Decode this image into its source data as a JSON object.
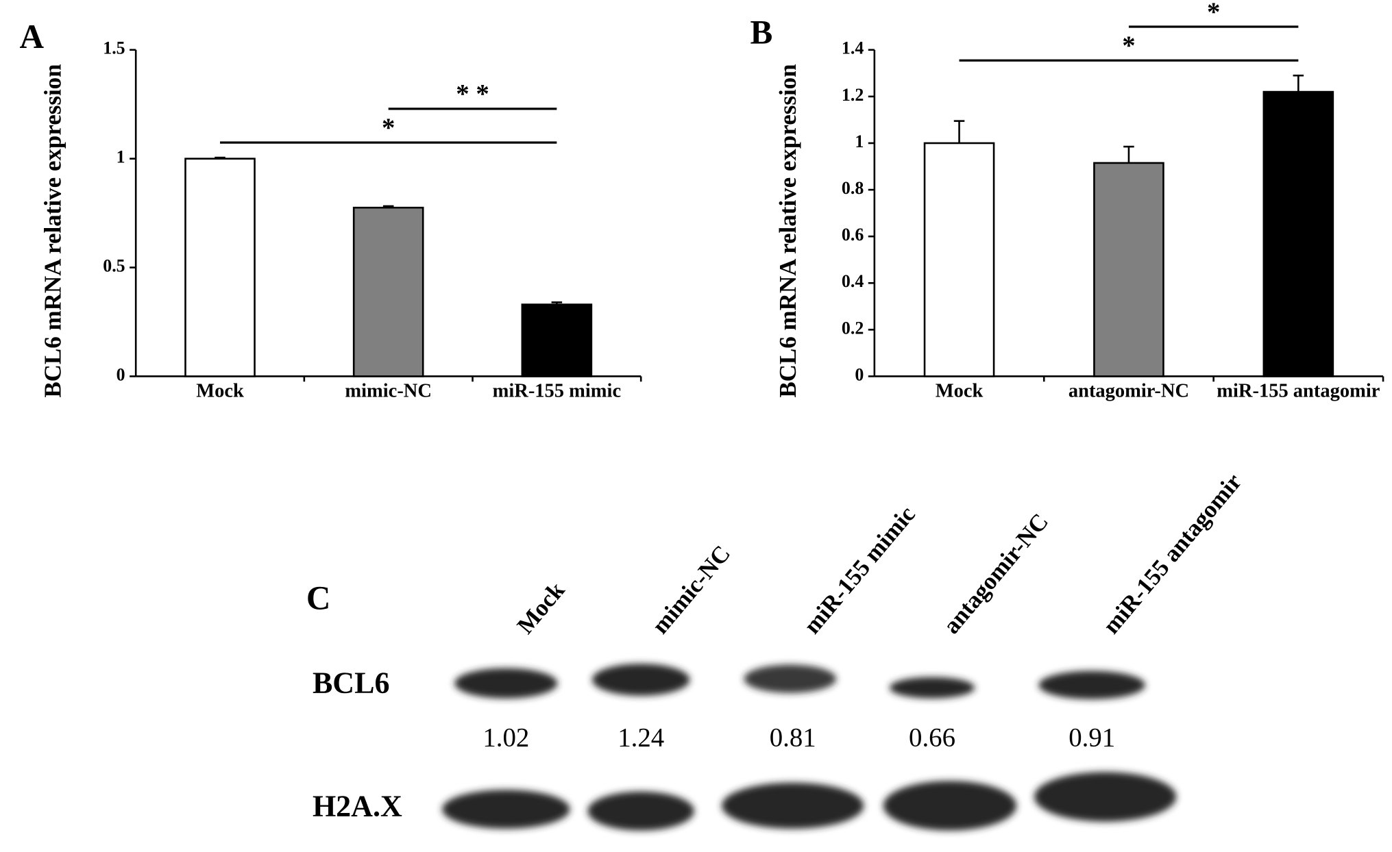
{
  "chart_data": [
    {
      "type": "bar",
      "panel": "A",
      "ylabel": "BCL6 mRNA relative expression",
      "categories": [
        "Mock",
        "mimic-NC",
        "miR-155 mimic"
      ],
      "values": [
        1.0,
        0.775,
        0.33
      ],
      "errors": [
        0.005,
        0.007,
        0.01
      ],
      "colors": [
        "#ffffff",
        "#808080",
        "#000000"
      ],
      "ylim": [
        0,
        1.5
      ],
      "yticks": [
        0,
        0.5,
        1,
        1.5
      ],
      "annotations": [
        {
          "categories": [
            "Mock",
            "miR-155 mimic"
          ],
          "label": "*"
        },
        {
          "categories": [
            "mimic-NC",
            "miR-155 mimic"
          ],
          "label": "* *"
        }
      ]
    },
    {
      "type": "bar",
      "panel": "B",
      "ylabel": "BCL6 mRNA relative expression",
      "categories": [
        "Mock",
        "antagomir-NC",
        "miR-155 antagomir"
      ],
      "values": [
        1.0,
        0.915,
        1.22
      ],
      "errors": [
        0.095,
        0.07,
        0.07
      ],
      "colors": [
        "#ffffff",
        "#808080",
        "#000000"
      ],
      "ylim": [
        0,
        1.4
      ],
      "yticks": [
        0,
        0.2,
        0.4,
        0.6,
        0.8,
        1,
        1.2,
        1.4
      ],
      "annotations": [
        {
          "categories": [
            "Mock",
            "miR-155 antagomir"
          ],
          "label": "*"
        },
        {
          "categories": [
            "antagomir-NC",
            "miR-155 antagomir"
          ],
          "label": "*"
        }
      ]
    }
  ],
  "blot": {
    "panel": "C",
    "lanes": [
      "Mock",
      "mimic-NC",
      "miR-155 mimic",
      "antagomir-NC",
      "miR-155 antagomir"
    ],
    "rows": [
      "BCL6",
      "H2A.X"
    ],
    "values": [
      1.02,
      1.24,
      0.81,
      0.66,
      0.91
    ]
  }
}
